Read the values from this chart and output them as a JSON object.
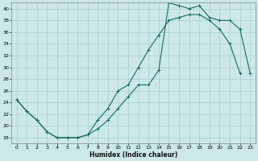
{
  "xlabel": "Humidex (Indice chaleur)",
  "xlim": [
    -0.5,
    23.5
  ],
  "ylim": [
    17,
    41
  ],
  "xticks": [
    0,
    1,
    2,
    3,
    4,
    5,
    6,
    7,
    8,
    9,
    10,
    11,
    12,
    13,
    14,
    15,
    16,
    17,
    18,
    19,
    20,
    21,
    22,
    23
  ],
  "yticks": [
    18,
    20,
    22,
    24,
    26,
    28,
    30,
    32,
    34,
    36,
    38,
    40
  ],
  "bg_color": "#cce8e8",
  "line_color": "#1a6b5e",
  "grid_color": "#aacfcf",
  "line1_x": [
    0,
    1,
    2,
    3,
    4,
    5,
    6,
    7,
    8,
    9,
    10,
    11,
    12,
    13,
    14,
    15,
    16,
    17,
    18,
    19,
    20,
    21,
    22
  ],
  "line1_y": [
    24.5,
    22.5,
    21,
    19,
    18,
    18,
    18,
    18.5,
    21,
    23,
    26,
    27,
    30,
    33,
    35.5,
    38,
    38.5,
    39,
    39,
    38,
    36.5,
    34,
    29
  ],
  "line2_x": [
    0,
    1,
    2,
    3,
    4,
    5,
    6,
    7,
    8,
    9,
    10,
    11,
    12,
    13,
    14,
    15,
    16,
    17,
    18,
    19,
    20,
    21,
    22,
    23
  ],
  "line2_y": [
    24.5,
    22.5,
    21,
    19,
    18,
    18,
    18,
    18.5,
    19.5,
    21,
    23,
    25,
    27,
    27,
    29.5,
    41,
    40.5,
    40,
    40.5,
    38.5,
    38,
    38,
    36.5,
    29
  ]
}
